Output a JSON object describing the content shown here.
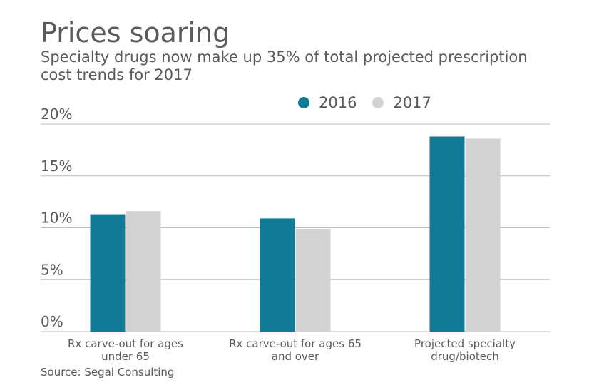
{
  "chart_data": {
    "type": "bar",
    "title": "Prices soaring",
    "subtitle": "Specialty drugs now make up 35% of total projected prescription cost trends for 2017",
    "categories": [
      [
        "Rx carve-out for ages",
        "under 65"
      ],
      [
        "Rx carve-out for ages 65",
        "and over"
      ],
      [
        "Projected specialty",
        "drug/biotech"
      ]
    ],
    "series": [
      {
        "name": "2016",
        "color": "#117b96",
        "values": [
          11.3,
          10.9,
          18.8
        ]
      },
      {
        "name": "2017",
        "color": "#d3d3d3",
        "values": [
          11.6,
          9.9,
          18.6
        ]
      }
    ],
    "ylim": [
      0,
      20
    ],
    "yticks": [
      "0%",
      "5%",
      "10%",
      "15%",
      "20%"
    ],
    "ytick_values": [
      0,
      5,
      10,
      15,
      20
    ],
    "xlabel": "",
    "ylabel": "",
    "grid": true,
    "legend_position": "top-right"
  },
  "source": "Source: Segal Consulting"
}
